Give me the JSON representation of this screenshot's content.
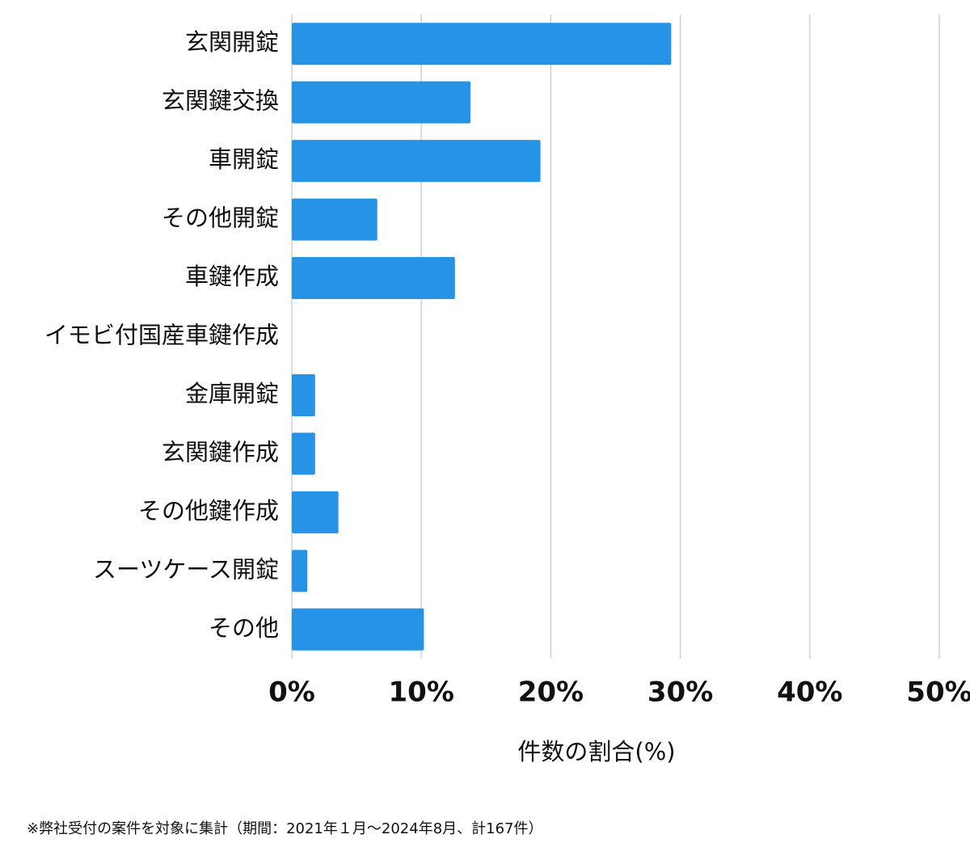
{
  "chart_data": {
    "type": "barh",
    "categories": [
      "玄関開錠",
      "玄関鍵交換",
      "車開錠",
      "その他開錠",
      "車鍵作成",
      "イモビ付国産車鍵作成",
      "金庫開錠",
      "玄関鍵作成",
      "その他鍵作成",
      "スーツケース開錠",
      "その他"
    ],
    "values": [
      29.3,
      13.8,
      19.2,
      6.6,
      12.6,
      0,
      1.8,
      1.8,
      3.6,
      1.2,
      10.2
    ],
    "color": "#2693e6",
    "xlim": [
      0,
      50
    ],
    "xticks": [
      {
        "value": 0,
        "label": "0%"
      },
      {
        "value": 10,
        "label": "10%"
      },
      {
        "value": 20,
        "label": "20%"
      },
      {
        "value": 30,
        "label": "30%"
      },
      {
        "value": 40,
        "label": "40%"
      },
      {
        "value": 50,
        "label": "50%"
      }
    ],
    "grid": true,
    "xlabel": "件数の割合(%)",
    "note": "※弊社受付の案件を対象に集計（期間：2021年１月〜2024年8月、計167件）"
  }
}
